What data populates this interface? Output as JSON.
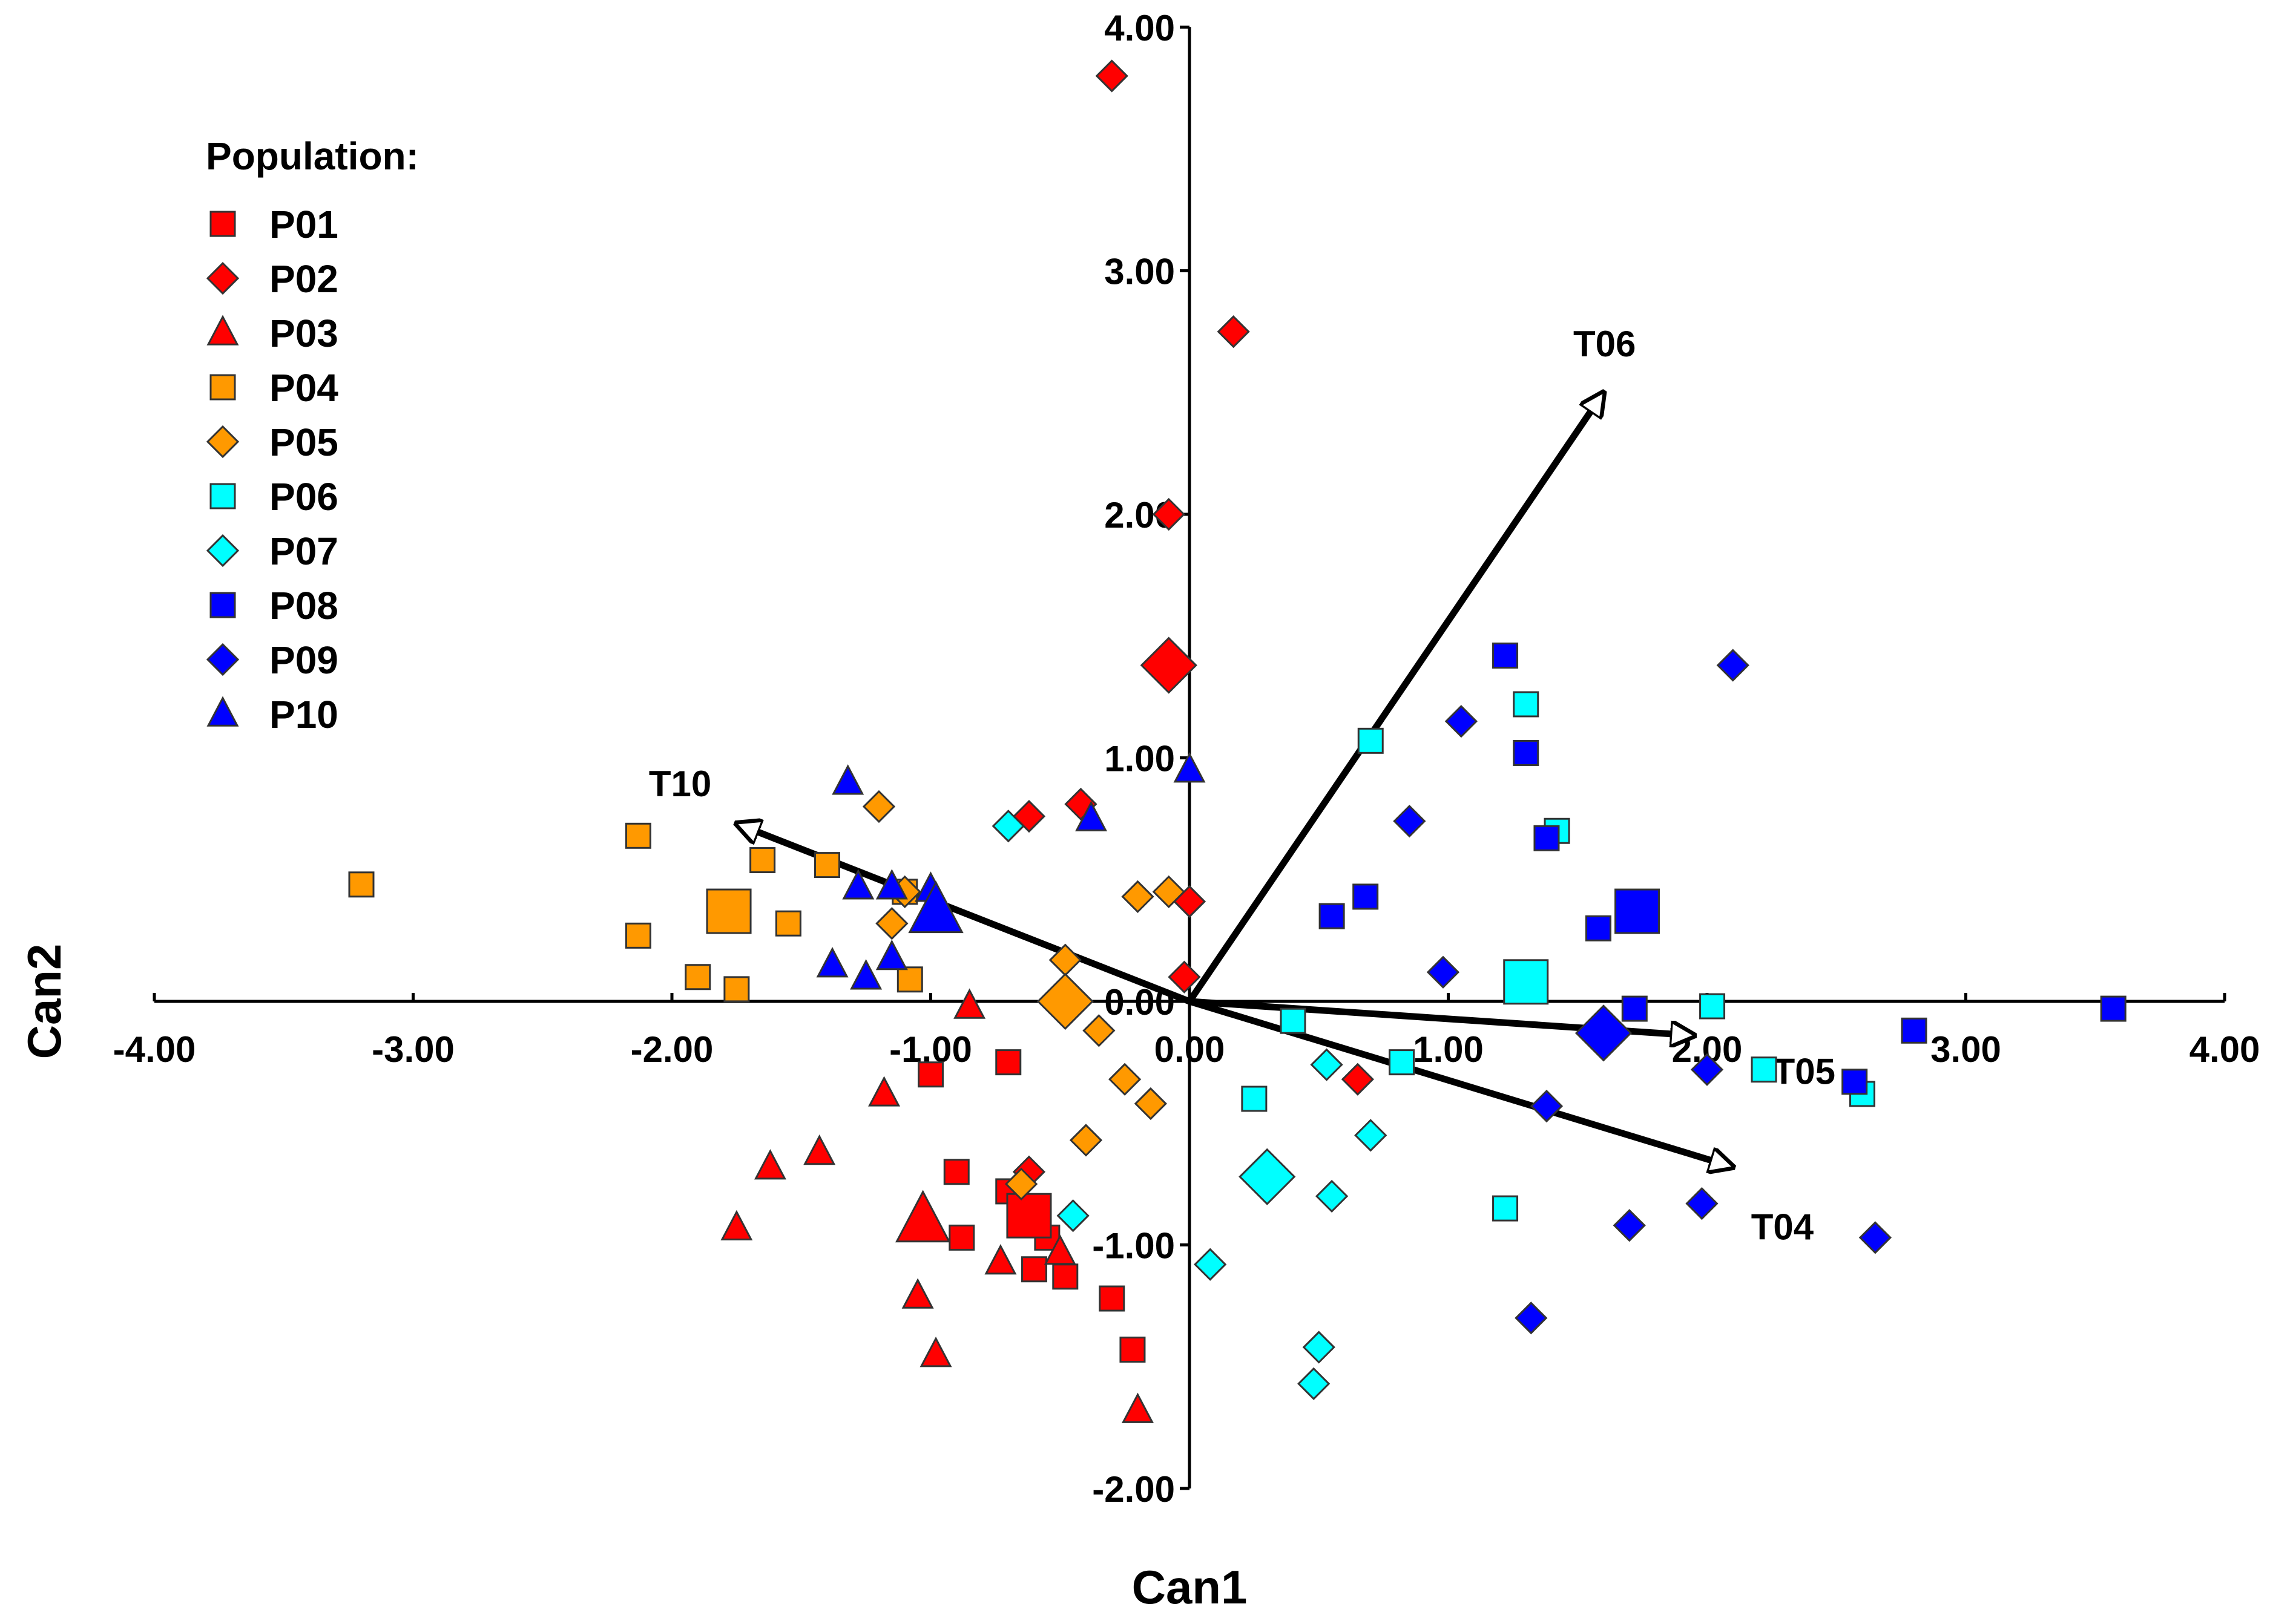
{
  "chart_data": {
    "type": "scatter",
    "title": "",
    "xlabel": "Can1",
    "ylabel": "Can2",
    "xlim": [
      -4,
      4
    ],
    "ylim": [
      -2,
      4
    ],
    "xticks": [
      -4,
      -3,
      -2,
      -1,
      0,
      1,
      2,
      3,
      4
    ],
    "yticks": [
      -2,
      -1,
      0,
      1,
      2,
      3,
      4
    ],
    "xtick_labels": [
      "-4.00",
      "-3.00",
      "-2.00",
      "-1.00",
      "0.00",
      "1.00",
      "2.00",
      "3.00",
      "4.00"
    ],
    "ytick_labels": [
      "-2.00",
      "-1.00",
      "0.00",
      "1.00",
      "2.00",
      "3.00",
      "4.00"
    ],
    "legend": {
      "title": "Population:",
      "position": "top-left"
    },
    "series": [
      {
        "name": "P01",
        "marker": "square",
        "color": "#ff0000",
        "points": [
          [
            -1.0,
            -0.3
          ],
          [
            -0.9,
            -0.7
          ],
          [
            -0.7,
            -0.25
          ],
          [
            -0.7,
            -0.78
          ],
          [
            -0.88,
            -0.97
          ],
          [
            -0.6,
            -1.1
          ],
          [
            -0.55,
            -0.97
          ],
          [
            -0.48,
            -1.13
          ],
          [
            -0.3,
            -1.22
          ],
          [
            -0.22,
            -1.43
          ]
        ],
        "centroid": [
          -0.62,
          -0.88
        ]
      },
      {
        "name": "P02",
        "marker": "diamond",
        "color": "#ff0000",
        "points": [
          [
            -0.3,
            3.8
          ],
          [
            0.17,
            2.75
          ],
          [
            -0.08,
            2.0
          ],
          [
            -0.62,
            0.76
          ],
          [
            -0.42,
            0.81
          ],
          [
            0.0,
            0.41
          ],
          [
            -0.02,
            0.1
          ],
          [
            0.65,
            -0.32
          ],
          [
            -0.62,
            -0.7
          ]
        ],
        "centroid": [
          -0.08,
          1.38
        ]
      },
      {
        "name": "P03",
        "marker": "triangle",
        "color": "#ff0000",
        "points": [
          [
            -0.85,
            -0.02
          ],
          [
            -1.18,
            -0.38
          ],
          [
            -1.43,
            -0.62
          ],
          [
            -1.62,
            -0.68
          ],
          [
            -1.75,
            -0.93
          ],
          [
            -1.05,
            -1.21
          ],
          [
            -0.98,
            -1.45
          ],
          [
            -0.73,
            -1.07
          ],
          [
            -0.5,
            -1.03
          ],
          [
            -0.2,
            -1.68
          ]
        ],
        "centroid": [
          -1.03,
          -0.9
        ]
      },
      {
        "name": "P04",
        "marker": "square",
        "color": "#ff9900",
        "points": [
          [
            -3.2,
            0.48
          ],
          [
            -2.13,
            0.68
          ],
          [
            -2.13,
            0.27
          ],
          [
            -1.9,
            0.1
          ],
          [
            -1.75,
            0.05
          ],
          [
            -1.65,
            0.58
          ],
          [
            -1.55,
            0.32
          ],
          [
            -1.4,
            0.56
          ],
          [
            -1.1,
            0.45
          ],
          [
            -1.08,
            0.09
          ]
        ],
        "centroid": [
          -1.78,
          0.37
        ]
      },
      {
        "name": "P05",
        "marker": "diamond",
        "color": "#ff9900",
        "points": [
          [
            -1.2,
            0.8
          ],
          [
            -1.15,
            0.32
          ],
          [
            -1.1,
            0.45
          ],
          [
            -0.2,
            0.43
          ],
          [
            -0.08,
            0.45
          ],
          [
            -0.48,
            0.17
          ],
          [
            -0.35,
            -0.12
          ],
          [
            -0.25,
            -0.32
          ],
          [
            -0.15,
            -0.42
          ],
          [
            -0.4,
            -0.57
          ],
          [
            -0.65,
            -0.75
          ]
        ],
        "centroid": [
          -0.48,
          0.0
        ]
      },
      {
        "name": "P06",
        "marker": "square",
        "color": "#00ffff",
        "points": [
          [
            0.7,
            1.07
          ],
          [
            1.3,
            1.22
          ],
          [
            1.42,
            0.7
          ],
          [
            0.4,
            -0.08
          ],
          [
            0.25,
            -0.4
          ],
          [
            0.82,
            -0.25
          ],
          [
            1.22,
            -0.85
          ],
          [
            2.02,
            -0.02
          ],
          [
            2.22,
            -0.28
          ],
          [
            2.6,
            -0.38
          ]
        ],
        "centroid": [
          1.3,
          0.08
        ]
      },
      {
        "name": "P07",
        "marker": "diamond",
        "color": "#00ffff",
        "points": [
          [
            -0.7,
            0.72
          ],
          [
            0.53,
            -0.26
          ],
          [
            0.7,
            -0.55
          ],
          [
            0.55,
            -0.8
          ],
          [
            0.08,
            -1.08
          ],
          [
            0.5,
            -1.42
          ],
          [
            0.48,
            -1.57
          ],
          [
            -0.45,
            -0.88
          ]
        ],
        "centroid": [
          0.3,
          -0.72
        ]
      },
      {
        "name": "P08",
        "marker": "square",
        "color": "#0000ff",
        "points": [
          [
            1.22,
            1.42
          ],
          [
            1.3,
            1.02
          ],
          [
            1.38,
            0.67
          ],
          [
            0.68,
            0.43
          ],
          [
            0.55,
            0.35
          ],
          [
            1.58,
            0.3
          ],
          [
            1.72,
            -0.03
          ],
          [
            2.8,
            -0.12
          ],
          [
            3.57,
            -0.03
          ],
          [
            2.57,
            -0.33
          ]
        ],
        "centroid": [
          1.73,
          0.37
        ]
      },
      {
        "name": "P09",
        "marker": "diamond",
        "color": "#0000ff",
        "points": [
          [
            2.1,
            1.38
          ],
          [
            1.05,
            1.15
          ],
          [
            0.85,
            0.74
          ],
          [
            0.98,
            0.12
          ],
          [
            1.38,
            -0.43
          ],
          [
            2.0,
            -0.28
          ],
          [
            1.7,
            -0.92
          ],
          [
            1.98,
            -0.83
          ],
          [
            2.65,
            -0.97
          ],
          [
            1.32,
            -1.3
          ]
        ],
        "centroid": [
          1.6,
          -0.13
        ]
      },
      {
        "name": "P10",
        "marker": "triangle",
        "color": "#0000ff",
        "points": [
          [
            -1.32,
            0.9
          ],
          [
            -1.28,
            0.47
          ],
          [
            -1.15,
            0.47
          ],
          [
            -1.38,
            0.15
          ],
          [
            -1.25,
            0.1
          ],
          [
            -1.15,
            0.18
          ],
          [
            -0.38,
            0.75
          ],
          [
            -1.0,
            0.46
          ],
          [
            0.0,
            0.95
          ]
        ],
        "centroid": [
          -0.98,
          0.37
        ]
      }
    ],
    "vectors": [
      {
        "name": "T06",
        "x": 1.6,
        "y": 2.5
      },
      {
        "name": "T10",
        "x": -1.75,
        "y": 0.73
      },
      {
        "name": "T05",
        "x": 1.95,
        "y": -0.14
      },
      {
        "name": "T04",
        "x": 2.1,
        "y": -0.68
      }
    ]
  }
}
